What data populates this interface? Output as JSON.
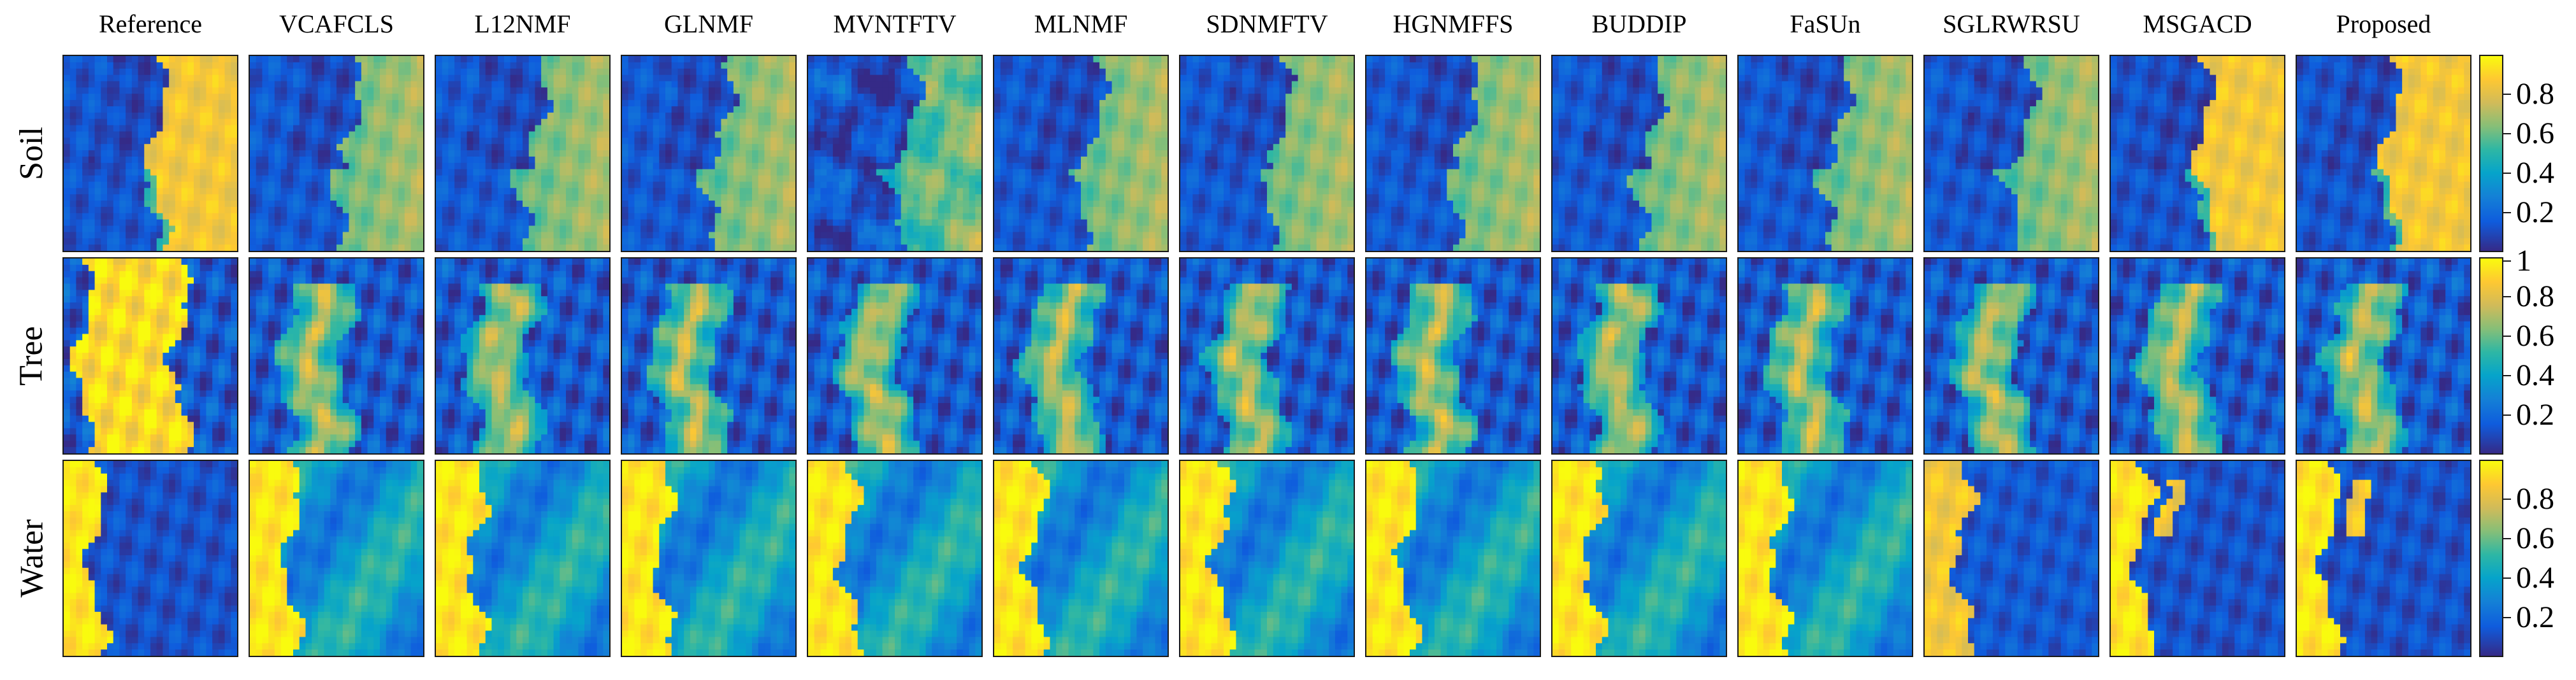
{
  "columns": [
    "Reference",
    "VCAFCLS",
    "L12NMF",
    "GLNMF",
    "MVNTFTV",
    "MLNMF",
    "SDNMFTV",
    "HGNMFFS",
    "BUDDIP",
    "FaSUn",
    "SGLRWRSU",
    "MSGACD",
    "Proposed"
  ],
  "rows": [
    "Soil",
    "Tree",
    "Water"
  ],
  "colorbars": [
    {
      "ticks": [
        "0.8",
        "0.6",
        "0.4",
        "0.2"
      ]
    },
    {
      "ticks": [
        "1",
        "0.8",
        "0.6",
        "0.4",
        "0.2"
      ]
    },
    {
      "ticks": [
        "0.8",
        "0.6",
        "0.4",
        "0.2"
      ]
    }
  ],
  "colormap": [
    "#352a87",
    "#0f5cdd",
    "#1481d6",
    "#06a4ca",
    "#2eb7a4",
    "#87bf77",
    "#d1bb59",
    "#fec832",
    "#f9fb0e"
  ]
}
